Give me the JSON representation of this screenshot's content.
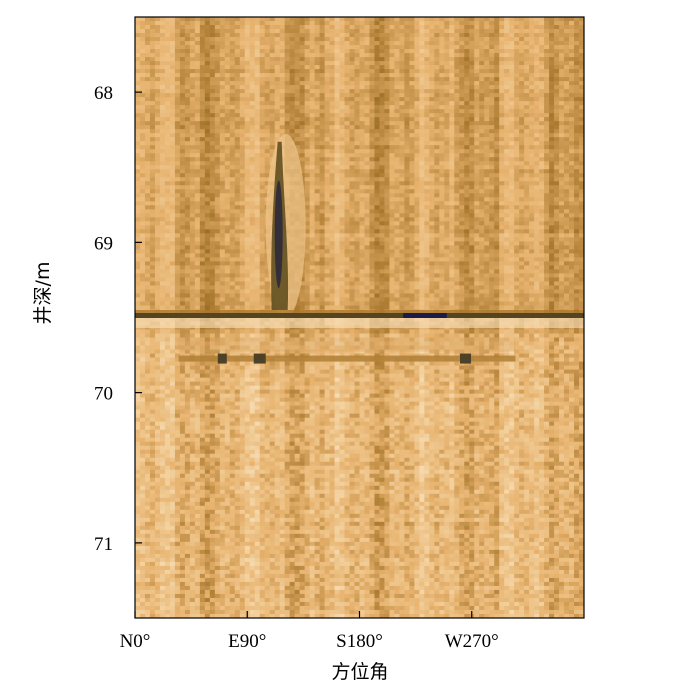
{
  "chart_data": {
    "type": "heatmap",
    "title": "",
    "xlabel": "方位角",
    "ylabel": "井深/m",
    "x_ticks": [
      {
        "value": 0,
        "label": "N0°"
      },
      {
        "value": 90,
        "label": "E90°"
      },
      {
        "value": 180,
        "label": "S180°"
      },
      {
        "value": 270,
        "label": "W270°"
      }
    ],
    "y_ticks": [
      {
        "value": 68,
        "label": "68"
      },
      {
        "value": 69,
        "label": "69"
      },
      {
        "value": 70,
        "label": "70"
      },
      {
        "value": 71,
        "label": "71"
      }
    ],
    "xlim": [
      0,
      360
    ],
    "ylim": [
      67.5,
      71.5
    ],
    "y_inverted": true,
    "grid": false,
    "colormap": [
      "#1b1b4a",
      "#5a4a1e",
      "#a9782e",
      "#e7b36f",
      "#f3d2a0",
      "#fcf1de"
    ],
    "features": [
      {
        "name": "vertical-fracture",
        "azimuth_start": 110,
        "azimuth_end": 122,
        "depth_start": 68.33,
        "depth_end": 69.45,
        "intensity": 0.9
      },
      {
        "name": "horizontal-fracture",
        "azimuth_start": 0,
        "azimuth_end": 360,
        "depth": 69.49,
        "intensity": 0.7
      },
      {
        "name": "dark-patch",
        "azimuth_start": 215,
        "azimuth_end": 250,
        "depth": 69.49,
        "intensity": 1.0
      },
      {
        "name": "lower-fracture-band",
        "azimuth_start": 35,
        "azimuth_end": 305,
        "depth": 69.78,
        "intensity": 0.55
      }
    ]
  }
}
